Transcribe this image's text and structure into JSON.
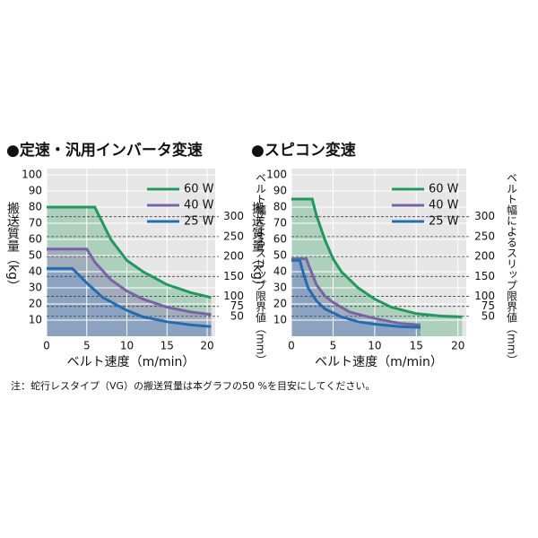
{
  "chart_data": [
    {
      "type": "line",
      "title": "●定速・汎用インバータ変速",
      "y_label": "搬送質量（kg）",
      "y2_label": "ベルト幅によるスリップ限界値（mm）",
      "x_label": "ベルト速度（m/min）",
      "xlim": [
        0,
        21
      ],
      "xticks": [
        0,
        5,
        10,
        15,
        20
      ],
      "ylim": [
        0,
        100
      ],
      "yticks": [
        10,
        20,
        30,
        40,
        50,
        60,
        70,
        80,
        90,
        100
      ],
      "y2lim": [
        0,
        405
      ],
      "y2ticks": [
        50,
        75,
        100,
        150,
        200,
        250,
        300
      ],
      "grid": true,
      "series": [
        {
          "name": "60 W",
          "color": "#1e9a5c",
          "x": [
            0,
            6,
            7,
            8,
            10,
            12,
            15,
            18,
            20.5
          ],
          "values": [
            80,
            80,
            70,
            60,
            47,
            40,
            32,
            27,
            24
          ]
        },
        {
          "name": "40 W",
          "color": "#7b62a8",
          "x": [
            0,
            5,
            6,
            8,
            10,
            12,
            15,
            18,
            20.5
          ],
          "values": [
            54,
            54,
            46,
            35,
            28,
            23,
            18,
            15,
            13.5
          ]
        },
        {
          "name": "25 W",
          "color": "#1f6db3",
          "x": [
            0,
            3.2,
            5,
            7,
            10,
            12,
            15,
            18,
            20.5
          ],
          "values": [
            42,
            42,
            33,
            24,
            16,
            12,
            9,
            7,
            6
          ]
        }
      ]
    },
    {
      "type": "line",
      "title": "●スピコン変速",
      "y_label": "搬送質量（kg）",
      "y2_label": "ベルト幅によるスリップ限界値（mm）",
      "x_label": "ベルト速度（m/min）",
      "xlim": [
        0,
        21
      ],
      "xticks": [
        0,
        5,
        10,
        15,
        20
      ],
      "ylim": [
        0,
        100
      ],
      "yticks": [
        10,
        20,
        30,
        40,
        50,
        60,
        70,
        80,
        90,
        100
      ],
      "y2lim": [
        0,
        405
      ],
      "y2ticks": [
        50,
        75,
        100,
        150,
        200,
        250,
        300
      ],
      "grid": true,
      "series": [
        {
          "name": "60 W",
          "color": "#1e9a5c",
          "x": [
            0,
            2.5,
            3,
            4,
            5,
            6,
            8,
            10,
            12,
            15,
            18,
            20.5
          ],
          "values": [
            85,
            85,
            75,
            60,
            48,
            40,
            30,
            23,
            18,
            14,
            12.5,
            12
          ]
        },
        {
          "name": "40 W",
          "color": "#7b62a8",
          "x": [
            0,
            1.8,
            2,
            3,
            4,
            5,
            7,
            10,
            13,
            15.5
          ],
          "values": [
            48,
            48,
            45,
            32,
            25,
            21,
            15,
            11,
            8,
            7
          ]
        },
        {
          "name": "25 W",
          "color": "#1f6db3",
          "x": [
            0,
            1,
            1.5,
            2,
            3,
            4,
            6,
            8,
            10,
            13,
            15.5
          ],
          "values": [
            47,
            47,
            38,
            30,
            22,
            17,
            12,
            9,
            7.5,
            6,
            5.5
          ]
        }
      ]
    }
  ],
  "note": "注：蛇行レスタイプ（VG）の搬送質量は本グラフの50 %を目安にしてください。"
}
